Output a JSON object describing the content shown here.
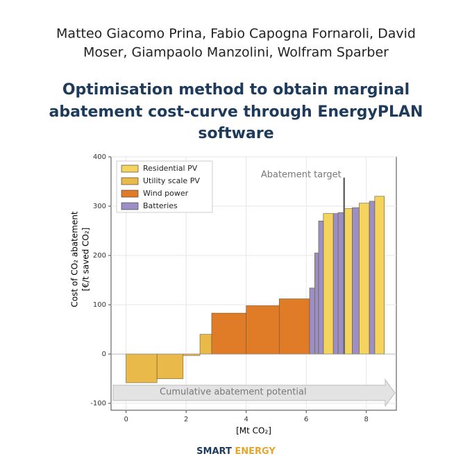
{
  "authors": [
    "Matteo Giacomo Prina, Fabio Capogna Fornaroli, David",
    "Moser, Giampaolo Manzolini, Wolfram Sparber"
  ],
  "title": [
    "Optimisation method to obtain marginal",
    "abatement cost-curve through EnergyPLAN",
    "software"
  ],
  "chart_data": {
    "type": "bar",
    "ylabel": [
      "Cost of CO₂ abatement",
      "[€/t saved CO₂]"
    ],
    "xlabel": "[Mt CO₂]",
    "xlim": [
      -0.5,
      9
    ],
    "ylim": [
      -114,
      400
    ],
    "xticks": [
      0,
      2,
      4,
      6,
      8
    ],
    "yticks": [
      -100,
      0,
      100,
      200,
      300,
      400
    ],
    "grid": true,
    "legend": "upper left",
    "series": [
      {
        "name": "Residential PV",
        "color": "#f4d35e",
        "x0": [
          6.57,
          7.26,
          7.76,
          8.28
        ],
        "x1": [
          6.9,
          7.53,
          8.1,
          8.6
        ],
        "values": [
          285,
          295,
          306,
          320
        ]
      },
      {
        "name": "Utility scale PV",
        "color": "#e9b949",
        "x0": [
          0,
          1.03,
          1.9,
          2.46
        ],
        "x1": [
          1.03,
          1.9,
          2.46,
          2.85
        ],
        "values": [
          -58,
          -50,
          -3,
          40
        ]
      },
      {
        "name": "Wind power",
        "color": "#e07b28",
        "x0": [
          2.85,
          4.0,
          5.1
        ],
        "x1": [
          4.0,
          5.1,
          6.11
        ],
        "values": [
          83,
          98,
          112
        ]
      },
      {
        "name": "Batteries",
        "color": "#9b8fc6",
        "x0": [
          6.11,
          6.28,
          6.41,
          6.9,
          7.06,
          7.53,
          8.1
        ],
        "x1": [
          6.28,
          6.41,
          6.57,
          7.06,
          7.26,
          7.76,
          8.28
        ],
        "values": [
          134,
          205,
          270,
          285,
          287,
          297,
          310
        ]
      }
    ],
    "annotations": [
      {
        "text": "Abatement target",
        "x": 7.26,
        "y": 358
      }
    ],
    "arrow_label": "Cumulative abatement potential"
  },
  "footer": [
    "SMART",
    "ENERGY"
  ]
}
